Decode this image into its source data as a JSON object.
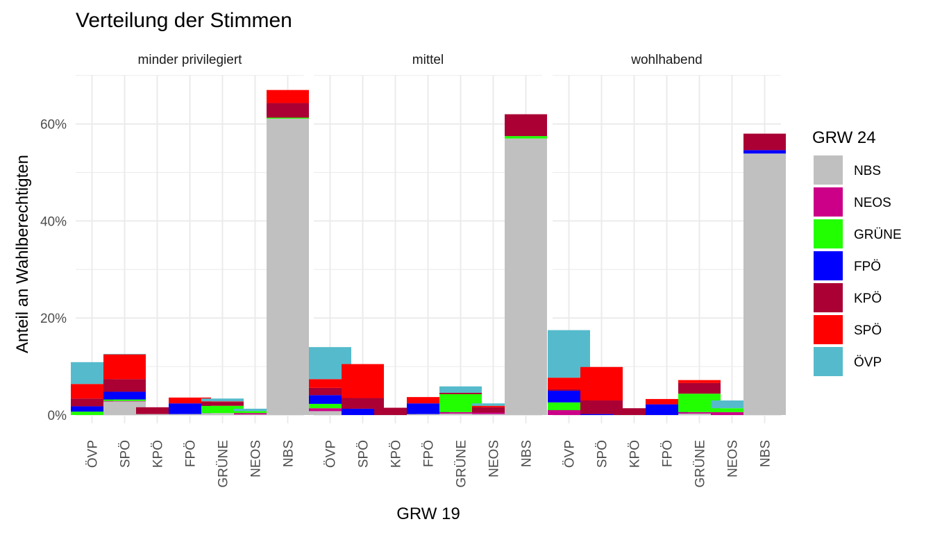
{
  "chart_data": {
    "type": "bar",
    "stacked": true,
    "faceted": true,
    "title": "Verteilung der Stimmen",
    "xlabel": "GRW 19",
    "ylabel": "Anteil an Wahlberechtigten",
    "ylim": [
      0,
      70
    ],
    "yticks": [
      0,
      20,
      40,
      60
    ],
    "ytick_labels": [
      "0%",
      "20%",
      "40%",
      "60%"
    ],
    "grid": true,
    "legend": {
      "title": "GRW 24",
      "placement": "right",
      "entries": [
        {
          "name": "NBS",
          "color": "#C0C0C0"
        },
        {
          "name": "NEOS",
          "color": "#CC0088"
        },
        {
          "name": "GRÜNE",
          "color": "#22FF00"
        },
        {
          "name": "FPÖ",
          "color": "#0000FF"
        },
        {
          "name": "KPÖ",
          "color": "#AA0033"
        },
        {
          "name": "SPÖ",
          "color": "#FF0000"
        },
        {
          "name": "ÖVP",
          "color": "#55BBCC"
        }
      ]
    },
    "stack_order": [
      "NBS",
      "NEOS",
      "GRÜNE",
      "FPÖ",
      "KPÖ",
      "SPÖ",
      "ÖVP"
    ],
    "categories": [
      "ÖVP",
      "SPÖ",
      "KPÖ",
      "FPÖ",
      "GRÜNE",
      "NEOS",
      "NBS"
    ],
    "facets": [
      {
        "label": "minder privilegiert",
        "bars": [
          {
            "category": "ÖVP",
            "segments": {
              "NBS": 0.0,
              "NEOS": 0.0,
              "GRÜNE": 0.7,
              "FPÖ": 1.1,
              "KPÖ": 1.6,
              "SPÖ": 3.0,
              "ÖVP": 4.5
            }
          },
          {
            "category": "SPÖ",
            "segments": {
              "NBS": 2.8,
              "NEOS": 0.1,
              "GRÜNE": 0.3,
              "FPÖ": 1.6,
              "KPÖ": 2.6,
              "SPÖ": 5.1,
              "ÖVP": 0.1
            }
          },
          {
            "category": "KPÖ",
            "segments": {
              "NBS": 0.2,
              "NEOS": 0.0,
              "GRÜNE": 0.0,
              "FPÖ": 0.0,
              "KPÖ": 1.4,
              "SPÖ": 0.0,
              "ÖVP": 0.0
            }
          },
          {
            "category": "FPÖ",
            "segments": {
              "NBS": 0.2,
              "NEOS": 0.0,
              "GRÜNE": 0.0,
              "FPÖ": 2.2,
              "KPÖ": 0.0,
              "SPÖ": 1.2,
              "ÖVP": 0.0
            }
          },
          {
            "category": "GRÜNE",
            "segments": {
              "NBS": 0.4,
              "NEOS": 0.0,
              "GRÜNE": 1.5,
              "FPÖ": 0.0,
              "KPÖ": 0.8,
              "SPÖ": 0.1,
              "ÖVP": 0.6
            }
          },
          {
            "category": "NEOS",
            "segments": {
              "NBS": 0.1,
              "NEOS": 0.3,
              "GRÜNE": 0.4,
              "FPÖ": 0.0,
              "KPÖ": 0.0,
              "SPÖ": 0.0,
              "ÖVP": 0.5
            }
          },
          {
            "category": "NBS",
            "segments": {
              "NBS": 61.1,
              "NEOS": 0.0,
              "GRÜNE": 0.2,
              "FPÖ": 0.0,
              "KPÖ": 3.0,
              "SPÖ": 2.7,
              "ÖVP": 0.0
            }
          }
        ]
      },
      {
        "label": "mittel",
        "bars": [
          {
            "category": "ÖVP",
            "segments": {
              "NBS": 0.8,
              "NEOS": 0.6,
              "GRÜNE": 0.9,
              "FPÖ": 1.8,
              "KPÖ": 1.5,
              "SPÖ": 1.8,
              "ÖVP": 6.6
            }
          },
          {
            "category": "SPÖ",
            "segments": {
              "NBS": 0.0,
              "NEOS": 0.0,
              "GRÜNE": 0.0,
              "FPÖ": 1.3,
              "KPÖ": 2.2,
              "SPÖ": 7.0,
              "ÖVP": 0.0
            }
          },
          {
            "category": "KPÖ",
            "segments": {
              "NBS": 0.0,
              "NEOS": 0.0,
              "GRÜNE": 0.0,
              "FPÖ": 0.0,
              "KPÖ": 1.5,
              "SPÖ": 0.0,
              "ÖVP": 0.0
            }
          },
          {
            "category": "FPÖ",
            "segments": {
              "NBS": 0.2,
              "NEOS": 0.0,
              "GRÜNE": 0.0,
              "FPÖ": 2.2,
              "KPÖ": 0.0,
              "SPÖ": 1.3,
              "ÖVP": 0.0
            }
          },
          {
            "category": "GRÜNE",
            "segments": {
              "NBS": 0.3,
              "NEOS": 0.3,
              "GRÜNE": 3.7,
              "FPÖ": 0.0,
              "KPÖ": 0.3,
              "SPÖ": 0.0,
              "ÖVP": 1.3
            }
          },
          {
            "category": "NEOS",
            "segments": {
              "NBS": 0.2,
              "NEOS": 0.3,
              "GRÜNE": 0.0,
              "FPÖ": 0.0,
              "KPÖ": 1.1,
              "SPÖ": 0.3,
              "ÖVP": 0.5
            }
          },
          {
            "category": "NBS",
            "segments": {
              "NBS": 57.0,
              "NEOS": 0.0,
              "GRÜNE": 0.5,
              "FPÖ": 0.0,
              "KPÖ": 4.5,
              "SPÖ": 0.0,
              "ÖVP": 0.0
            }
          }
        ]
      },
      {
        "label": "wohlhabend",
        "bars": [
          {
            "category": "ÖVP",
            "segments": {
              "NBS": 0.0,
              "NEOS": 1.0,
              "GRÜNE": 1.6,
              "FPÖ": 2.4,
              "KPÖ": 0.3,
              "SPÖ": 2.4,
              "ÖVP": 9.8
            }
          },
          {
            "category": "SPÖ",
            "segments": {
              "NBS": 0.0,
              "NEOS": 0.0,
              "GRÜNE": 0.0,
              "FPÖ": 0.2,
              "KPÖ": 2.8,
              "SPÖ": 6.9,
              "ÖVP": 0.0
            }
          },
          {
            "category": "KPÖ",
            "segments": {
              "NBS": 0.0,
              "NEOS": 0.0,
              "GRÜNE": 0.0,
              "FPÖ": 0.0,
              "KPÖ": 1.4,
              "SPÖ": 0.0,
              "ÖVP": 0.0
            }
          },
          {
            "category": "FPÖ",
            "segments": {
              "NBS": 0.0,
              "NEOS": 0.0,
              "GRÜNE": 0.0,
              "FPÖ": 2.2,
              "KPÖ": 0.0,
              "SPÖ": 1.1,
              "ÖVP": 0.0
            }
          },
          {
            "category": "GRÜNE",
            "segments": {
              "NBS": 0.3,
              "NEOS": 0.3,
              "GRÜNE": 3.8,
              "FPÖ": 0.0,
              "KPÖ": 2.2,
              "SPÖ": 0.6,
              "ÖVP": 0.0
            }
          },
          {
            "category": "NEOS",
            "segments": {
              "NBS": 0.0,
              "NEOS": 0.6,
              "GRÜNE": 0.8,
              "FPÖ": 0.0,
              "KPÖ": 0.0,
              "SPÖ": 0.0,
              "ÖVP": 1.6
            }
          },
          {
            "category": "NBS",
            "segments": {
              "NBS": 53.9,
              "NEOS": 0.0,
              "GRÜNE": 0.0,
              "FPÖ": 0.7,
              "KPÖ": 3.4,
              "SPÖ": 0.0,
              "ÖVP": 0.0
            }
          }
        ]
      }
    ]
  }
}
